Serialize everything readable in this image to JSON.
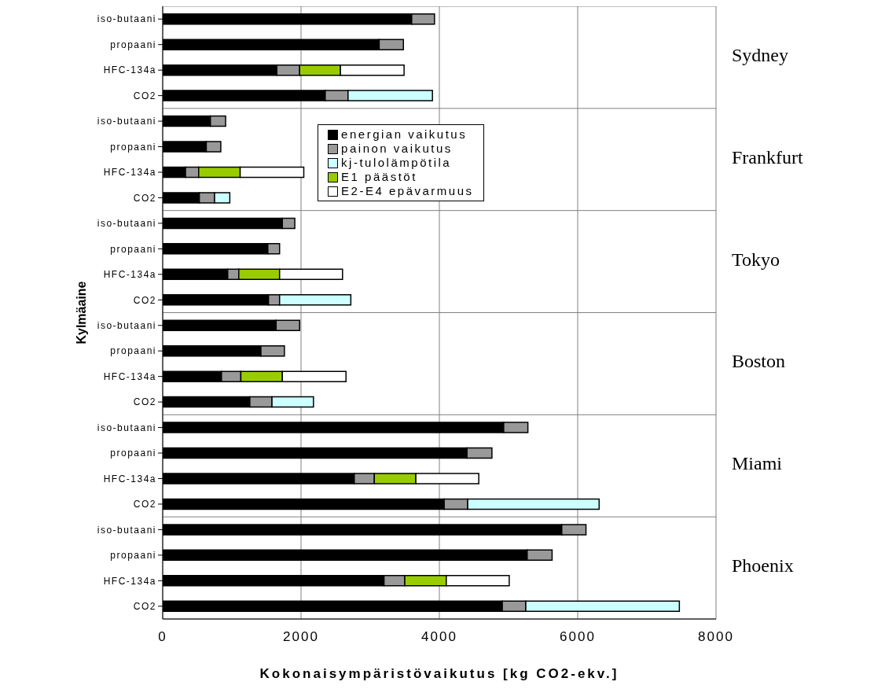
{
  "chart_data": {
    "type": "bar",
    "orientation": "horizontal",
    "stacked": true,
    "xlabel": "Kokonaisympäristövaikutus [kg CO2-ekv.]",
    "ylabel": "Kylmäaine",
    "categories": [
      "iso-butaani",
      "propaani",
      "HFC-134a",
      "CO2",
      "iso-butaani",
      "propaani",
      "HFC-134a",
      "CO2",
      "iso-butaani",
      "propaani",
      "HFC-134a",
      "CO2",
      "iso-butaani",
      "propaani",
      "HFC-134a",
      "CO2",
      "iso-butaani",
      "propaani",
      "HFC-134a",
      "CO2",
      "iso-butaani",
      "propaani",
      "HFC-134a",
      "CO2"
    ],
    "series": [
      {
        "name": "energian vaikutus",
        "color": "#000000",
        "values": [
          3600,
          3130,
          1650,
          2350,
          690,
          630,
          330,
          530,
          1730,
          1520,
          940,
          1530,
          1640,
          1420,
          850,
          1260,
          4930,
          4400,
          2770,
          4070,
          5770,
          5270,
          3200,
          4910
        ]
      },
      {
        "name": "painon vaikutus",
        "color": "#999999",
        "values": [
          330,
          350,
          330,
          330,
          220,
          210,
          190,
          220,
          180,
          170,
          160,
          160,
          340,
          340,
          280,
          320,
          350,
          360,
          290,
          340,
          350,
          360,
          300,
          340
        ]
      },
      {
        "name": "kj-tulolämpötila",
        "color": "#ccffff",
        "values": [
          null,
          null,
          null,
          1220,
          null,
          null,
          null,
          220,
          null,
          null,
          null,
          1030,
          null,
          null,
          null,
          600,
          null,
          null,
          null,
          1900,
          null,
          null,
          null,
          2220
        ]
      },
      {
        "name": "E1 päästöt",
        "color": "#99cc00",
        "values": [
          null,
          null,
          590,
          null,
          null,
          null,
          600,
          null,
          null,
          null,
          590,
          null,
          null,
          null,
          600,
          null,
          null,
          null,
          600,
          null,
          null,
          null,
          600,
          null
        ]
      },
      {
        "name": "E2-E4 epävarmuus",
        "color": "#ffffff",
        "values": [
          null,
          null,
          920,
          null,
          null,
          null,
          920,
          null,
          null,
          null,
          910,
          null,
          null,
          null,
          920,
          null,
          null,
          null,
          910,
          null,
          null,
          null,
          910,
          null
        ]
      }
    ],
    "xlim": [
      0,
      8000
    ],
    "xticks": [
      0,
      2000,
      4000,
      6000,
      8000
    ],
    "grid": true,
    "legend": "top",
    "annotations": [
      "Sydney",
      "Frankfurt",
      "Tokyo",
      "Boston",
      "Miami",
      "Phoenix"
    ]
  }
}
